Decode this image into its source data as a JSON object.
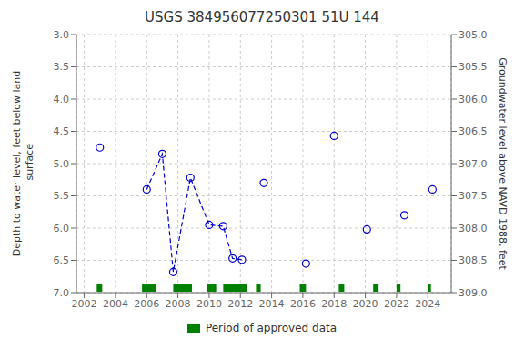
{
  "chart_data": {
    "type": "scatter",
    "title": "USGS 384956077250301 51U 144",
    "y_label": "Depth to water level, feet below land\n surface",
    "y2_label": "Groundwater level above NAVD 1988, feet",
    "xlim": [
      2001.5,
      2025.5
    ],
    "xticks": [
      2002,
      2004,
      2006,
      2008,
      2010,
      2012,
      2014,
      2016,
      2018,
      2020,
      2022,
      2024
    ],
    "ylim": [
      7.0,
      3.0
    ],
    "yticks": [
      {
        "value": 3.0,
        "label": "3.0"
      },
      3.5,
      {
        "value": 4.0,
        "label": "4.0"
      },
      4.5,
      {
        "value": 5.0,
        "label": "5.0"
      },
      5.5,
      {
        "value": 6.0,
        "label": "6.0"
      },
      6.5,
      {
        "value": 7.0,
        "label": "7.0"
      }
    ],
    "y2lim": [
      309.0,
      305.0
    ],
    "y2ticks": [
      {
        "value": 305.0,
        "label": "305.0"
      },
      305.5,
      {
        "value": 306.0,
        "label": "306.0"
      },
      306.5,
      {
        "value": 307.0,
        "label": "307.0"
      },
      307.5,
      {
        "value": 308.0,
        "label": "308.0"
      },
      308.5,
      {
        "value": 309.0,
        "label": "309.0"
      }
    ],
    "grid": true,
    "legend": "bottom",
    "series": [
      {
        "type": "line",
        "line_style": "dashed",
        "color": "#0000cc",
        "x": [
          2006.0,
          2007.0,
          2007.7,
          2008.8,
          2010.0,
          2010.9,
          2011.5,
          2012.1
        ],
        "values": [
          5.4,
          4.85,
          6.68,
          5.22,
          5.95,
          5.97,
          6.47,
          6.49
        ]
      },
      {
        "type": "scatter",
        "marker": "circle",
        "color": "#0000cc",
        "x": [
          2003.0,
          2006.0,
          2007.0,
          2007.7,
          2008.8,
          2010.0,
          2010.9,
          2011.5,
          2012.1,
          2013.5,
          2016.2,
          2018.0,
          2020.1,
          2022.5,
          2024.3
        ],
        "values": [
          4.75,
          5.4,
          4.85,
          6.68,
          5.22,
          5.95,
          5.97,
          6.47,
          6.49,
          5.3,
          6.55,
          4.57,
          6.02,
          5.8,
          5.4
        ]
      },
      {
        "type": "bar",
        "orientation": "horizontal",
        "name": "Period of approved data",
        "color": "#008000",
        "y": 6.93,
        "ranges": [
          [
            2002.8,
            2003.15
          ],
          [
            2005.7,
            2006.6
          ],
          [
            2007.7,
            2008.9
          ],
          [
            2009.85,
            2010.45
          ],
          [
            2010.9,
            2012.4
          ],
          [
            2013.0,
            2013.3
          ],
          [
            2015.8,
            2016.2
          ],
          [
            2018.3,
            2018.65
          ],
          [
            2020.5,
            2020.85
          ],
          [
            2022.0,
            2022.25
          ],
          [
            2024.0,
            2024.2
          ]
        ]
      }
    ]
  }
}
